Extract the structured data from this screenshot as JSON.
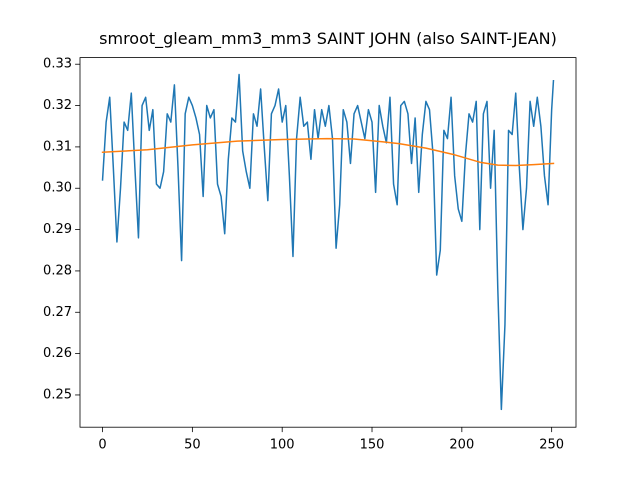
{
  "chart_data": {
    "type": "line",
    "title": "smroot_gleam_mm3_mm3 SAINT JOHN (also SAINT-JEAN)",
    "xlim": [
      -12.55,
      263.55
    ],
    "ylim": [
      0.2422,
      0.3316
    ],
    "xticks": [
      0,
      50,
      100,
      150,
      200,
      250
    ],
    "yticks": [
      0.25,
      0.26,
      0.27,
      0.28,
      0.29,
      {
        "value": 0.3,
        "label": "0.30"
      },
      0.31,
      0.32,
      0.33
    ],
    "series": [
      {
        "color": "#1f77b4",
        "x": [
          0,
          2,
          4,
          6,
          8,
          10,
          12,
          14,
          16,
          18,
          20,
          22,
          24,
          26,
          28,
          30,
          32,
          34,
          36,
          38,
          40,
          42,
          44,
          46,
          48,
          50,
          52,
          54,
          56,
          58,
          60,
          62,
          64,
          66,
          68,
          70,
          72,
          74,
          76,
          78,
          80,
          82,
          84,
          86,
          88,
          90,
          92,
          94,
          96,
          98,
          100,
          102,
          104,
          106,
          108,
          110,
          112,
          114,
          116,
          118,
          120,
          122,
          124,
          126,
          128,
          130,
          132,
          134,
          136,
          138,
          140,
          142,
          144,
          146,
          148,
          150,
          152,
          154,
          156,
          158,
          160,
          162,
          164,
          166,
          168,
          170,
          172,
          174,
          176,
          178,
          180,
          182,
          184,
          186,
          188,
          190,
          192,
          194,
          196,
          198,
          200,
          202,
          204,
          206,
          208,
          210,
          212,
          214,
          216,
          218,
          220,
          222,
          224,
          226,
          228,
          230,
          232,
          234,
          236,
          238,
          240,
          242,
          244,
          246,
          248,
          250,
          251
        ],
        "values": [
          0.302,
          0.316,
          0.322,
          0.305,
          0.287,
          0.3,
          0.316,
          0.314,
          0.323,
          0.305,
          0.288,
          0.32,
          0.322,
          0.314,
          0.319,
          0.301,
          0.3,
          0.304,
          0.318,
          0.316,
          0.325,
          0.305,
          0.2825,
          0.318,
          0.322,
          0.32,
          0.317,
          0.313,
          0.298,
          0.32,
          0.317,
          0.319,
          0.301,
          0.298,
          0.289,
          0.307,
          0.317,
          0.316,
          0.3275,
          0.309,
          0.304,
          0.3,
          0.318,
          0.315,
          0.324,
          0.31,
          0.297,
          0.318,
          0.32,
          0.324,
          0.316,
          0.32,
          0.303,
          0.2835,
          0.312,
          0.322,
          0.315,
          0.316,
          0.307,
          0.319,
          0.312,
          0.319,
          0.315,
          0.32,
          0.312,
          0.2855,
          0.296,
          0.319,
          0.316,
          0.306,
          0.318,
          0.32,
          0.316,
          0.312,
          0.319,
          0.316,
          0.299,
          0.32,
          0.315,
          0.311,
          0.322,
          0.301,
          0.296,
          0.32,
          0.321,
          0.318,
          0.306,
          0.317,
          0.299,
          0.313,
          0.321,
          0.319,
          0.308,
          0.279,
          0.285,
          0.314,
          0.312,
          0.322,
          0.303,
          0.295,
          0.292,
          0.308,
          0.318,
          0.316,
          0.321,
          0.29,
          0.318,
          0.321,
          0.3,
          0.314,
          0.276,
          0.2465,
          0.267,
          0.314,
          0.313,
          0.323,
          0.305,
          0.29,
          0.3,
          0.321,
          0.315,
          0.322,
          0.315,
          0.303,
          0.296,
          0.319,
          0.326
        ]
      },
      {
        "color": "#ff7f0e",
        "x": [
          0,
          25,
          50,
          75,
          100,
          125,
          140,
          150,
          165,
          180,
          195,
          210,
          220,
          230,
          240,
          251
        ],
        "values": [
          0.3087,
          0.3093,
          0.3105,
          0.3114,
          0.3118,
          0.312,
          0.3119,
          0.3115,
          0.3108,
          0.3097,
          0.3082,
          0.3063,
          0.3056,
          0.3055,
          0.3057,
          0.306
        ]
      }
    ]
  }
}
